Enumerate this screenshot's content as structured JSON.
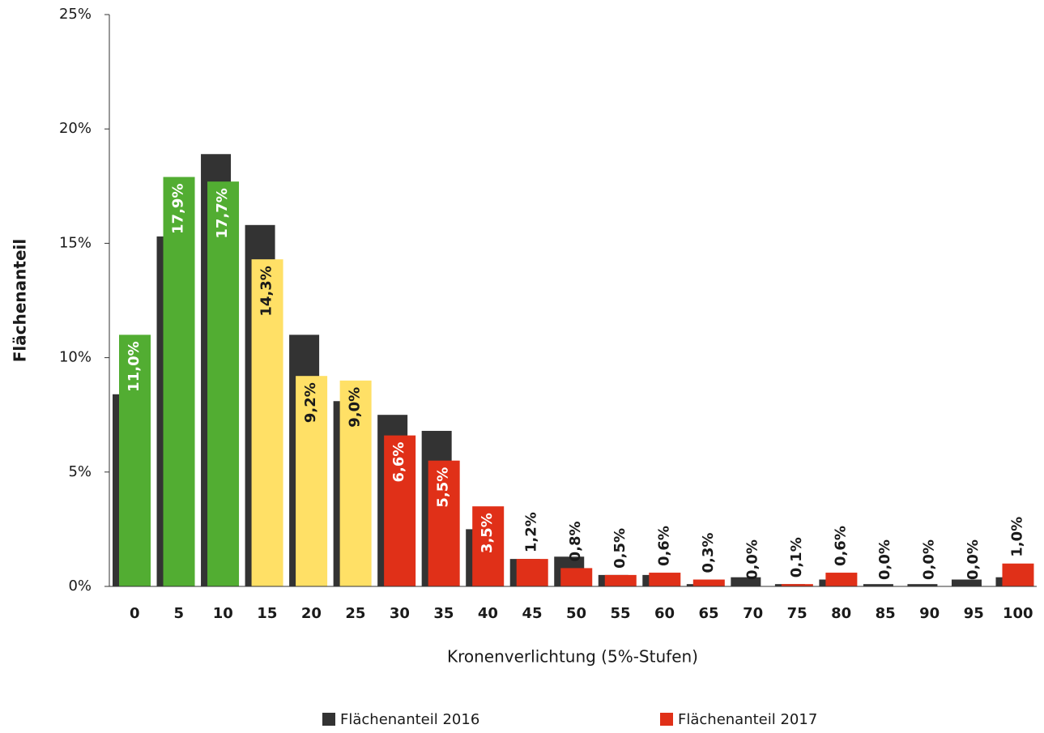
{
  "chart_data": {
    "type": "bar",
    "y_label": "Flächenanteil",
    "x_label": "Kronenverlichtung (5%-Stufen)",
    "categories": [
      "0",
      "5",
      "10",
      "15",
      "20",
      "25",
      "30",
      "35",
      "40",
      "45",
      "50",
      "55",
      "60",
      "65",
      "70",
      "75",
      "80",
      "85",
      "90",
      "95",
      "100"
    ],
    "series": [
      {
        "name": "Flächenanteil 2016",
        "color": "#333333",
        "values": [
          8.4,
          15.3,
          18.9,
          15.8,
          11.0,
          8.1,
          7.5,
          6.8,
          2.5,
          1.2,
          1.3,
          0.5,
          0.5,
          0.1,
          0.4,
          0.1,
          0.3,
          0.1,
          0.1,
          0.3,
          0.4
        ]
      },
      {
        "name": "Flächenanteil 2017",
        "color": "#e03018",
        "colors": [
          "#52ad32",
          "#52ad32",
          "#52ad32",
          "#ffe066",
          "#ffe066",
          "#ffe066",
          "#e03018",
          "#e03018",
          "#e03018",
          "#e03018",
          "#e03018",
          "#e03018",
          "#e03018",
          "#e03018",
          "#e03018",
          "#e03018",
          "#e03018",
          "#e03018",
          "#e03018",
          "#e03018",
          "#e03018"
        ],
        "values": [
          11.0,
          17.9,
          17.7,
          14.3,
          9.2,
          9.0,
          6.6,
          5.5,
          3.5,
          1.2,
          0.8,
          0.5,
          0.6,
          0.3,
          0.0,
          0.1,
          0.6,
          0.0,
          0.0,
          0.0,
          1.0
        ],
        "value_labels": [
          "11,0%",
          "17,9%",
          "17,7%",
          "14,3%",
          "9,2%",
          "9,0%",
          "6,6%",
          "5,5%",
          "3,5%",
          "1,2%",
          "0,8%",
          "0,5%",
          "0,6%",
          "0,3%",
          "0,0%",
          "0,1%",
          "0,6%",
          "0,0%",
          "0,0%",
          "0,0%",
          "1,0%"
        ]
      }
    ],
    "ylim": [
      0,
      25
    ],
    "yticks": [
      {
        "value": 0,
        "label": "0%"
      },
      {
        "value": 5,
        "label": "5%"
      },
      {
        "value": 10,
        "label": "10%"
      },
      {
        "value": 15,
        "label": "15%"
      },
      {
        "value": 20,
        "label": "20%"
      },
      {
        "value": 25,
        "label": "25%"
      }
    ]
  }
}
